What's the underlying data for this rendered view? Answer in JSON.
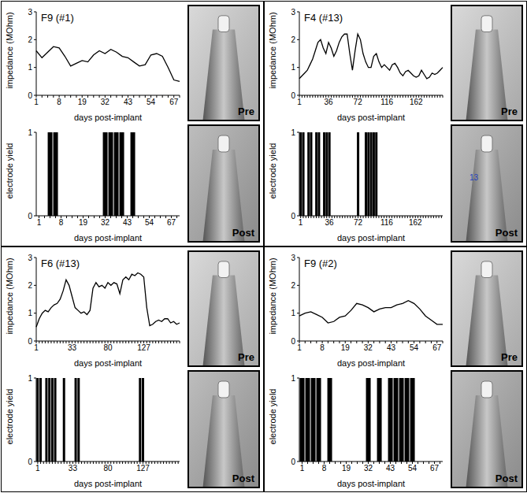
{
  "chart_data": [
    {
      "type": "line",
      "title": "F9 (#1)",
      "x_label": "days post-implant",
      "y_label": "impedance (MOhm)",
      "color": "#000000",
      "categories": [
        "1",
        null,
        null,
        null,
        "8",
        null,
        null,
        null,
        "19",
        null,
        null,
        null,
        "32",
        null,
        null,
        null,
        "43",
        null,
        null,
        null,
        "54",
        null,
        null,
        null,
        "67",
        null
      ],
      "values": [
        1.6,
        1.35,
        1.55,
        1.75,
        1.7,
        1.4,
        1.05,
        1.15,
        1.25,
        1.2,
        1.45,
        1.6,
        1.5,
        1.65,
        1.55,
        1.4,
        1.35,
        1.2,
        1.05,
        1.1,
        1.45,
        1.5,
        1.4,
        1.0,
        0.55,
        0.5
      ],
      "ylim": [
        0,
        3
      ],
      "yticks": [
        0,
        1,
        2,
        3
      ]
    },
    {
      "type": "bar",
      "x_label": "days post-implant",
      "y_label": "electrode yield",
      "color": "#000000",
      "categories": [
        "1",
        null,
        null,
        null,
        "8",
        null,
        null,
        null,
        "19",
        null,
        null,
        null,
        "32",
        null,
        null,
        null,
        "43",
        null,
        null,
        null,
        "54",
        null,
        null,
        null,
        "67",
        null
      ],
      "values": [
        0,
        0,
        1,
        1,
        0,
        0,
        0,
        0,
        0,
        0,
        0,
        0,
        1,
        1,
        1,
        1,
        0,
        1,
        0,
        0,
        0,
        0,
        0,
        0,
        0,
        0
      ],
      "ylim": [
        0,
        1
      ],
      "yticks": [
        0,
        1
      ]
    },
    {
      "type": "line",
      "title": "F4 (#13)",
      "x_label": "days post-implant",
      "y_label": "impedance (MOhm)",
      "color": "#000000",
      "categories": [
        "1",
        null,
        null,
        null,
        null,
        null,
        null,
        null,
        null,
        null,
        null,
        "36",
        null,
        null,
        null,
        null,
        null,
        null,
        null,
        null,
        null,
        null,
        "72",
        null,
        null,
        null,
        null,
        null,
        null,
        null,
        null,
        null,
        null,
        "116",
        null,
        null,
        null,
        null,
        null,
        null,
        null,
        null,
        null,
        null,
        "162",
        null,
        null,
        null,
        null,
        null,
        null,
        null,
        null,
        null,
        null
      ],
      "values": [
        0.6,
        0.7,
        0.8,
        0.9,
        1.1,
        1.3,
        1.6,
        1.9,
        2.0,
        1.7,
        1.5,
        1.9,
        1.7,
        1.4,
        1.6,
        1.9,
        2.1,
        2.2,
        2.2,
        1.5,
        0.9,
        1.6,
        2.2,
        2.0,
        1.5,
        1.2,
        1.0,
        1.0,
        1.4,
        1.5,
        1.2,
        1.0,
        1.1,
        1.0,
        0.9,
        1.1,
        1.15,
        1.0,
        0.8,
        0.7,
        0.85,
        0.9,
        0.8,
        0.7,
        0.65,
        0.7,
        0.9,
        0.75,
        0.6,
        0.65,
        0.8,
        0.75,
        0.8,
        0.9,
        1.0
      ],
      "ylim": [
        0,
        3
      ],
      "yticks": [
        0,
        1,
        2,
        3
      ]
    },
    {
      "type": "bar",
      "x_label": "days post-implant",
      "y_label": "electrode yield",
      "color": "#000000",
      "categories": [
        "1",
        null,
        null,
        null,
        null,
        null,
        null,
        null,
        null,
        null,
        null,
        "36",
        null,
        null,
        null,
        null,
        null,
        null,
        null,
        null,
        null,
        null,
        "72",
        null,
        null,
        null,
        null,
        null,
        null,
        null,
        null,
        null,
        null,
        "116",
        null,
        null,
        null,
        null,
        null,
        null,
        null,
        null,
        null,
        null,
        "162",
        null,
        null,
        null,
        null,
        null,
        null,
        null,
        null,
        null,
        null
      ],
      "values": [
        1,
        1,
        0,
        1,
        1,
        0,
        1,
        1,
        0,
        1,
        1,
        1,
        0,
        0,
        0,
        0,
        0,
        0,
        0,
        0,
        0,
        0,
        1,
        0,
        0,
        1,
        1,
        1,
        1,
        1,
        0,
        0,
        0,
        0,
        0,
        0,
        0,
        0,
        0,
        0,
        0,
        0,
        0,
        0,
        0,
        0,
        0,
        0,
        0,
        0,
        0,
        0,
        0,
        0,
        0
      ],
      "ylim": [
        0,
        1
      ],
      "yticks": [
        0,
        1
      ]
    },
    {
      "type": "line",
      "title": "F6 (#13)",
      "x_label": "days post-implant",
      "y_label": "impedance (MOhm)",
      "color": "#000000",
      "categories": [
        "1",
        null,
        null,
        null,
        null,
        null,
        null,
        null,
        null,
        null,
        null,
        null,
        "33",
        null,
        null,
        null,
        null,
        null,
        null,
        null,
        null,
        null,
        null,
        null,
        "80",
        null,
        null,
        null,
        null,
        null,
        null,
        null,
        null,
        null,
        null,
        null,
        "127",
        null,
        null,
        null,
        null,
        null,
        null,
        null,
        null,
        null,
        null,
        null,
        null
      ],
      "values": [
        0.5,
        0.8,
        1.0,
        1.1,
        1.05,
        1.2,
        1.3,
        1.35,
        1.5,
        1.8,
        2.2,
        2.0,
        1.6,
        1.2,
        1.1,
        1.0,
        1.05,
        0.95,
        1.1,
        1.9,
        2.1,
        1.95,
        2.0,
        1.9,
        2.1,
        2.0,
        2.1,
        2.05,
        1.7,
        2.2,
        2.3,
        2.2,
        2.4,
        2.35,
        2.45,
        2.4,
        2.3,
        1.2,
        0.55,
        0.6,
        0.7,
        0.75,
        0.7,
        0.8,
        0.8,
        0.65,
        0.7,
        0.6,
        0.65
      ],
      "ylim": [
        0,
        3
      ],
      "yticks": [
        0,
        1,
        2,
        3
      ]
    },
    {
      "type": "bar",
      "x_label": "days post-implant",
      "y_label": "electrode yield",
      "color": "#000000",
      "categories": [
        "1",
        null,
        null,
        null,
        null,
        null,
        null,
        null,
        null,
        null,
        null,
        null,
        "33",
        null,
        null,
        null,
        null,
        null,
        null,
        null,
        null,
        null,
        null,
        null,
        "80",
        null,
        null,
        null,
        null,
        null,
        null,
        null,
        null,
        null,
        null,
        null,
        "127",
        null,
        null,
        null,
        null,
        null,
        null,
        null,
        null,
        null,
        null,
        null,
        null
      ],
      "values": [
        1,
        1,
        0,
        1,
        1,
        1,
        1,
        0,
        0,
        1,
        0,
        0,
        0,
        1,
        1,
        0,
        0,
        0,
        0,
        0,
        0,
        0,
        0,
        0,
        0,
        0,
        0,
        0,
        0,
        0,
        0,
        0,
        0,
        0,
        0,
        1,
        1,
        0,
        0,
        0,
        0,
        0,
        0,
        0,
        0,
        0,
        0,
        0,
        0
      ],
      "ylim": [
        0,
        1
      ],
      "yticks": [
        0,
        1
      ]
    },
    {
      "type": "line",
      "title": "F9 (#2)",
      "x_label": "days post-implant",
      "y_label": "impedance (MOhm)",
      "color": "#000000",
      "categories": [
        "1",
        null,
        null,
        null,
        "8",
        null,
        null,
        null,
        "19",
        null,
        null,
        null,
        "32",
        null,
        null,
        null,
        "43",
        null,
        null,
        null,
        "54",
        null,
        null,
        null,
        "67",
        null
      ],
      "values": [
        0.9,
        1.0,
        1.05,
        0.95,
        0.85,
        0.65,
        0.7,
        0.85,
        0.9,
        1.1,
        1.35,
        1.3,
        1.2,
        1.05,
        1.15,
        1.2,
        1.2,
        1.3,
        1.35,
        1.45,
        1.35,
        1.15,
        0.9,
        0.75,
        0.6,
        0.6
      ],
      "ylim": [
        0,
        3
      ],
      "yticks": [
        0,
        1,
        2,
        3
      ]
    },
    {
      "type": "bar",
      "x_label": "days post-implant",
      "y_label": "electrode yield",
      "color": "#000000",
      "categories": [
        "1",
        null,
        null,
        null,
        "8",
        null,
        null,
        null,
        "19",
        null,
        null,
        null,
        "32",
        null,
        null,
        null,
        "43",
        null,
        null,
        null,
        "54",
        null,
        null,
        null,
        "67",
        null
      ],
      "values": [
        1,
        1,
        1,
        1,
        0,
        1,
        0,
        0,
        0,
        0,
        0,
        0,
        1,
        0,
        1,
        0,
        1,
        1,
        1,
        1,
        1,
        0,
        0,
        0,
        0,
        0
      ],
      "ylim": [
        0,
        1
      ],
      "yticks": [
        0,
        1
      ]
    }
  ],
  "images": [
    {
      "labels": [
        "Pre",
        "Post"
      ]
    },
    {
      "labels": [
        "Pre",
        "Post"
      ],
      "annotation": "13"
    },
    {
      "labels": [
        "Pre",
        "Post"
      ]
    },
    {
      "labels": [
        "Pre",
        "Post"
      ]
    }
  ]
}
